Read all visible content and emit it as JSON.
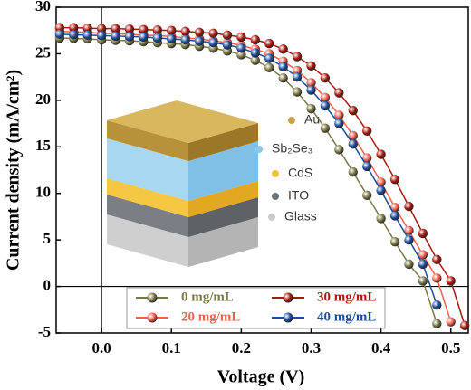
{
  "chart_data": {
    "type": "line",
    "xlabel": "Voltage (V)",
    "ylabel": "Current density (mA/cm²)",
    "x": [
      -0.06,
      -0.04,
      -0.02,
      0,
      0.02,
      0.04,
      0.06,
      0.08,
      0.1,
      0.12,
      0.14,
      0.16,
      0.18,
      0.2,
      0.22,
      0.24,
      0.26,
      0.28,
      0.3,
      0.32,
      0.34,
      0.36,
      0.38,
      0.4,
      0.42,
      0.44,
      0.46,
      0.48,
      0.5,
      0.52
    ],
    "series": [
      {
        "name": "0 mg/mL",
        "color": "#7a7846",
        "values": [
          26.7,
          26.65,
          26.6,
          26.5,
          26.45,
          26.4,
          26.3,
          26.2,
          26.1,
          26.0,
          25.8,
          25.6,
          25.3,
          24.9,
          24.3,
          23.5,
          22.4,
          20.9,
          19.1,
          17.0,
          14.7,
          12.3,
          9.8,
          7.3,
          4.8,
          2.4,
          0.6,
          -4.0,
          null,
          null
        ]
      },
      {
        "name": "20 mg/mL",
        "color": "#f0604f",
        "values": [
          27.4,
          27.35,
          27.3,
          27.2,
          27.15,
          27.1,
          27.0,
          26.95,
          26.85,
          26.7,
          26.6,
          26.4,
          26.2,
          25.9,
          25.5,
          25.0,
          24.2,
          23.2,
          21.9,
          20.3,
          18.4,
          16.2,
          13.8,
          11.2,
          8.5,
          6.0,
          3.4,
          0.9,
          -3.8,
          null
        ]
      },
      {
        "name": "30 mg/mL",
        "color": "#a8180c",
        "values": [
          27.8,
          27.8,
          27.75,
          27.7,
          27.7,
          27.65,
          27.6,
          27.55,
          27.5,
          27.4,
          27.3,
          27.2,
          27.0,
          26.8,
          26.5,
          26.1,
          25.5,
          24.7,
          23.7,
          22.4,
          20.8,
          18.9,
          16.7,
          14.2,
          11.5,
          8.6,
          5.7,
          2.9,
          0.6,
          -4.2
        ]
      },
      {
        "name": "40 mg/mL",
        "color": "#1c4c9c",
        "values": [
          27.1,
          27.05,
          27.0,
          26.95,
          26.9,
          26.85,
          26.8,
          26.7,
          26.6,
          26.5,
          26.35,
          26.2,
          25.95,
          25.6,
          25.1,
          24.5,
          23.6,
          22.5,
          21.1,
          19.4,
          17.5,
          15.3,
          12.9,
          10.3,
          7.6,
          5.0,
          2.4,
          -2.0,
          null,
          null
        ]
      }
    ],
    "xlim": [
      -0.065,
      0.525
    ],
    "ylim": [
      -5,
      30
    ],
    "xticks": [
      {
        "value": 0,
        "label": "0.0"
      },
      0.1,
      0.2,
      0.3,
      0.4,
      0.5
    ],
    "yticks": [
      -5,
      0,
      5,
      10,
      15,
      20,
      25,
      30
    ],
    "inset": {
      "labels": [
        "Au",
        "Sb₂Se₃",
        "CdS",
        "ITO",
        "Glass"
      ]
    }
  }
}
